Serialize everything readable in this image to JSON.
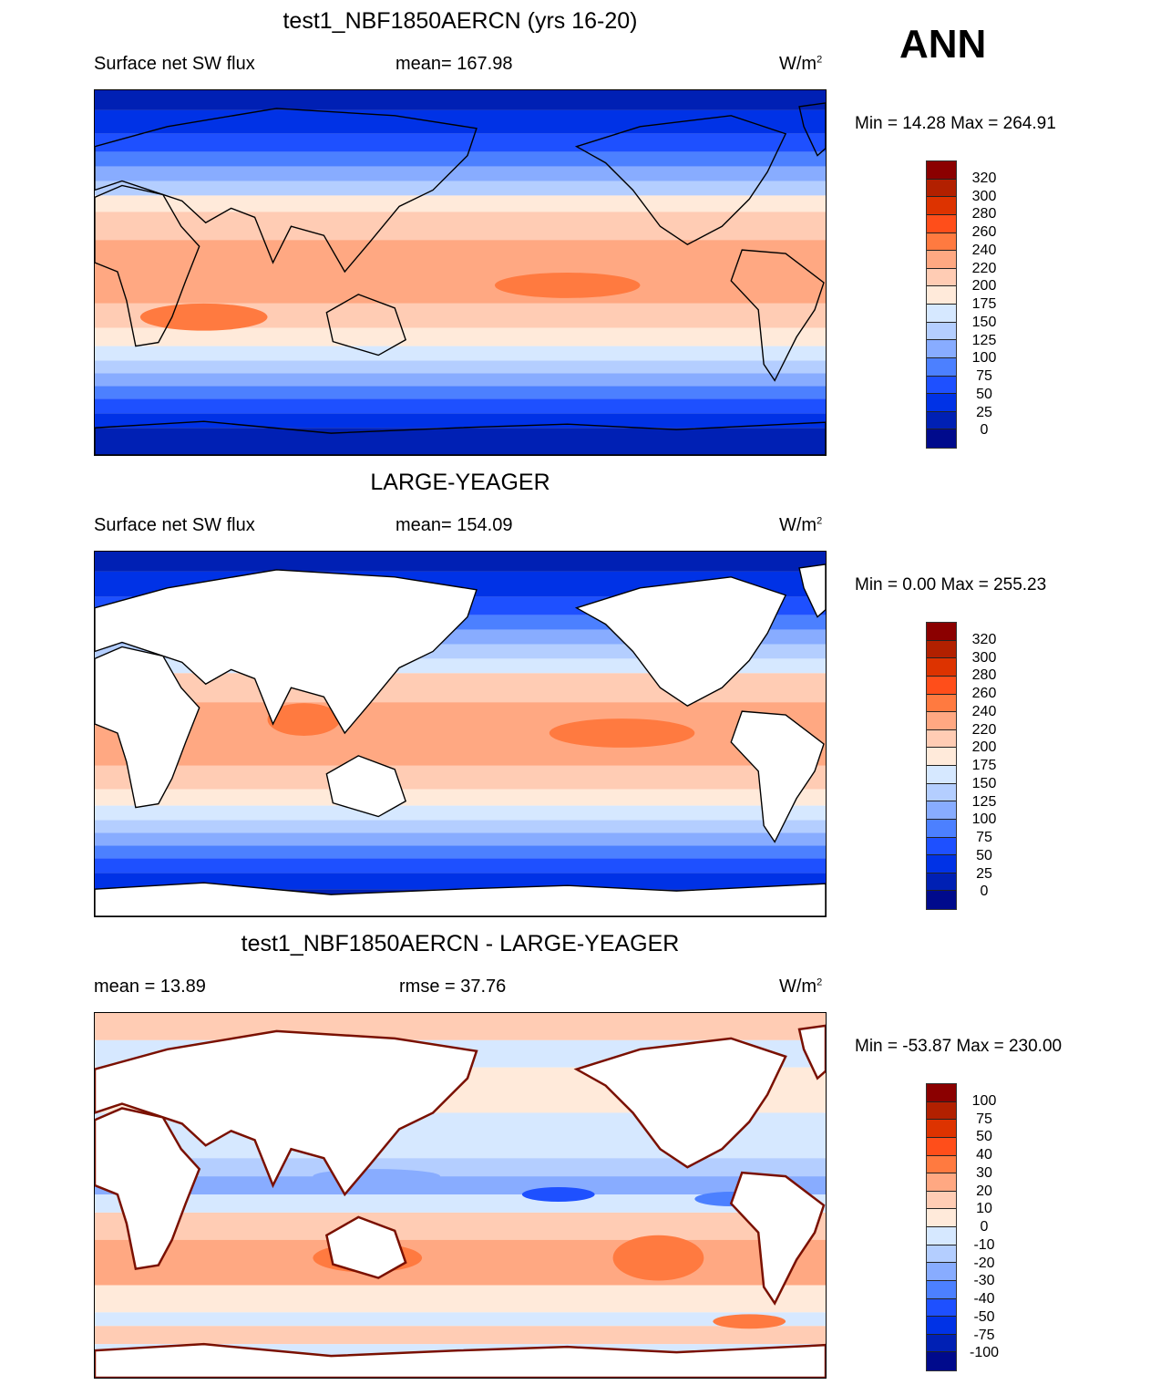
{
  "season": "ANN",
  "panels": [
    {
      "title": "test1_NBF1850AERCN (yrs 16-20)",
      "left": "Surface net SW flux",
      "center": "mean= 167.98",
      "units_base": "W/m",
      "units_exp": "2",
      "minmax": "Min =  14.28 Max = 264.91",
      "levels": [
        "320",
        "300",
        "280",
        "260",
        "240",
        "220",
        "200",
        "175",
        "150",
        "125",
        "100",
        "75",
        "50",
        "25",
        "0"
      ]
    },
    {
      "title": "LARGE-YEAGER",
      "left": "Surface net SW flux",
      "center": "mean= 154.09",
      "units_base": "W/m",
      "units_exp": "2",
      "minmax": "Min =   0.00 Max = 255.23",
      "levels": [
        "320",
        "300",
        "280",
        "260",
        "240",
        "220",
        "200",
        "175",
        "150",
        "125",
        "100",
        "75",
        "50",
        "25",
        "0"
      ]
    },
    {
      "title": "test1_NBF1850AERCN - LARGE-YEAGER",
      "left": "mean =  13.89",
      "center": "rmse =  37.76",
      "units_base": "W/m",
      "units_exp": "2",
      "minmax": "Min = -53.87 Max = 230.00",
      "levels": [
        "100",
        "75",
        "50",
        "40",
        "30",
        "20",
        "10",
        "0",
        "-10",
        "-20",
        "-30",
        "-40",
        "-50",
        "-75",
        "-100"
      ]
    }
  ],
  "colors": [
    "#8b0000",
    "#b22000",
    "#dd3300",
    "#ff4e1a",
    "#ff7a40",
    "#ffa882",
    "#ffccb4",
    "#ffeada",
    "#d6e8ff",
    "#b4ceff",
    "#88acff",
    "#4c80ff",
    "#1e50ff",
    "#0032e6",
    "#0020b4",
    "#000a8c"
  ]
}
